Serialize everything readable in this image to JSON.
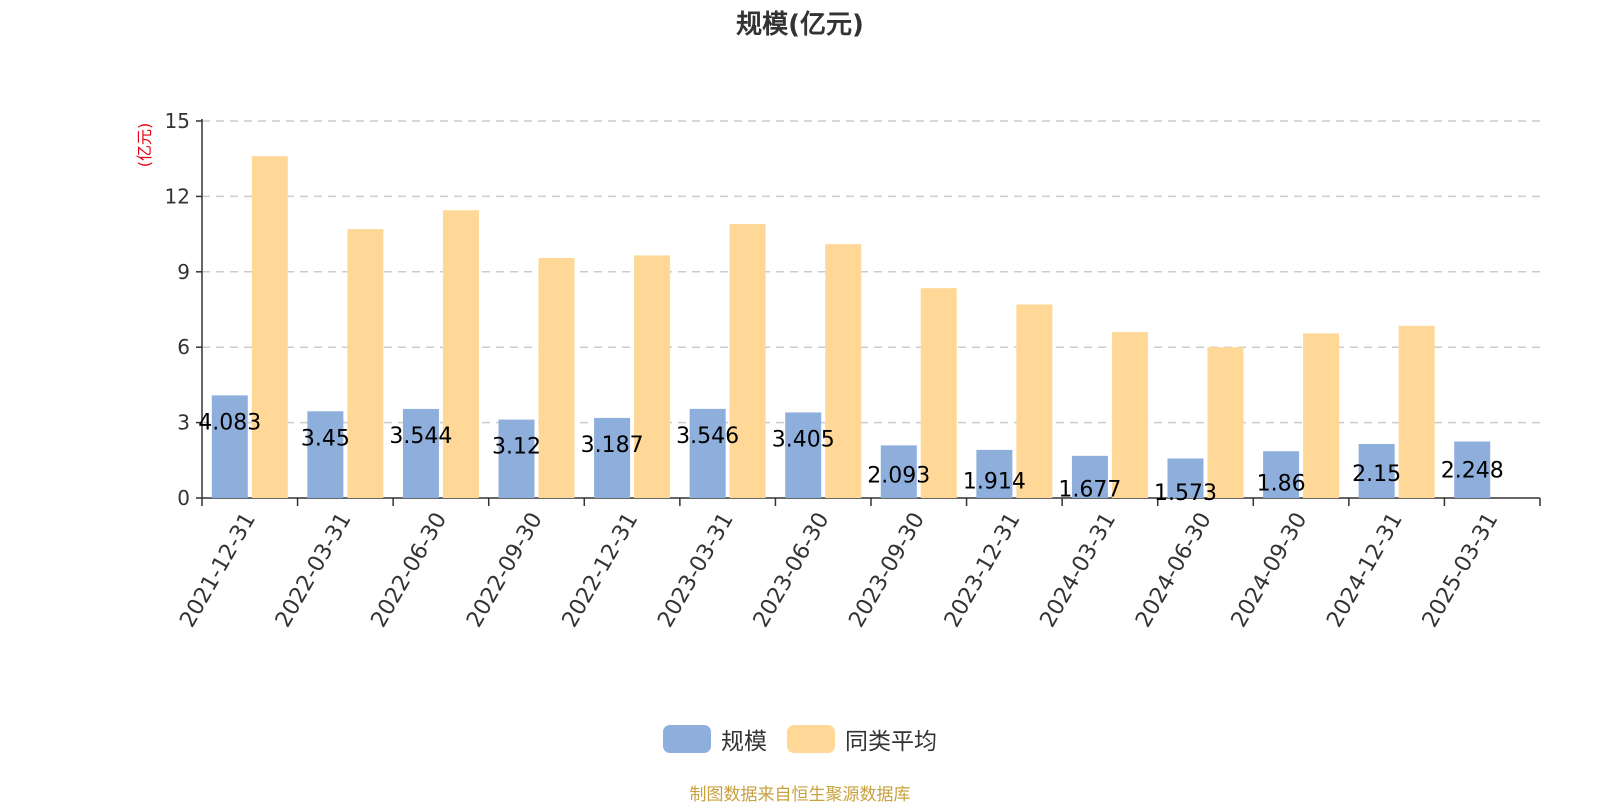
{
  "chart_data": {
    "type": "bar",
    "title": "规模(亿元)",
    "ylabel": "(亿元)",
    "ylim": [
      0,
      15
    ],
    "yticks": [
      0,
      3,
      6,
      9,
      12,
      15
    ],
    "grid": true,
    "legend_position": "bottom",
    "categories": [
      "2021-12-31",
      "2022-03-31",
      "2022-06-30",
      "2022-09-30",
      "2022-12-31",
      "2023-03-31",
      "2023-06-30",
      "2023-09-30",
      "2023-12-31",
      "2024-03-31",
      "2024-06-30",
      "2024-09-30",
      "2024-12-31",
      "2025-03-31"
    ],
    "series": [
      {
        "name": "规模",
        "color": "#8eaedc",
        "values": [
          4.083,
          3.45,
          3.544,
          3.12,
          3.187,
          3.546,
          3.405,
          2.093,
          1.914,
          1.677,
          1.573,
          1.86,
          2.15,
          2.248
        ],
        "labels": [
          "4.083",
          "3.45",
          "3.544",
          "3.12",
          "3.187",
          "3.546",
          "3.405",
          "2.093",
          "1.914",
          "1.677",
          "1.573",
          "1.86",
          "2.15",
          "2.248"
        ]
      },
      {
        "name": "同类平均",
        "color": "#ffd898",
        "values": [
          13.6,
          10.7,
          11.45,
          9.55,
          9.65,
          10.9,
          10.1,
          8.35,
          7.7,
          6.6,
          6.0,
          6.55,
          6.85,
          null
        ]
      }
    ]
  },
  "legend": {
    "items": [
      {
        "label": "规模",
        "color": "#8eaedc"
      },
      {
        "label": "同类平均",
        "color": "#ffd898"
      }
    ]
  },
  "source_note": "制图数据来自恒生聚源数据库"
}
